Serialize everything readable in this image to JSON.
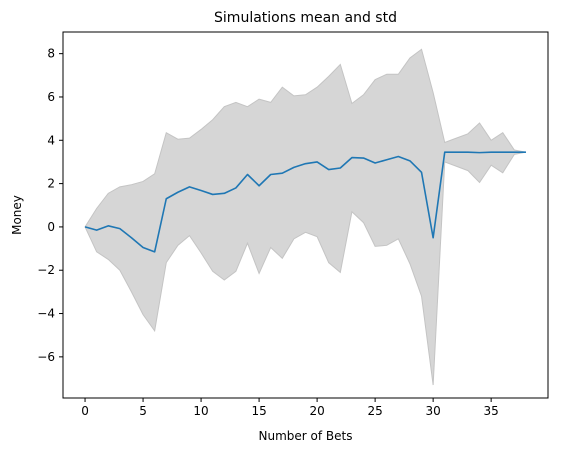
{
  "chart_data": {
    "type": "line",
    "title": "Simulations mean and std",
    "xlabel": "Number of Bets",
    "ylabel": "Money",
    "xlim": [
      -1.9,
      39.9
    ],
    "ylim": [
      -7.9,
      9.0
    ],
    "xticks": [
      0,
      5,
      10,
      15,
      20,
      25,
      30,
      35
    ],
    "yticks": [
      -6,
      -4,
      -2,
      0,
      2,
      4,
      6,
      8
    ],
    "grid": false,
    "x": [
      0,
      1,
      2,
      3,
      4,
      5,
      6,
      7,
      8,
      9,
      10,
      11,
      12,
      13,
      14,
      15,
      16,
      17,
      18,
      19,
      20,
      21,
      22,
      23,
      24,
      25,
      26,
      27,
      28,
      29,
      30,
      31,
      32,
      33,
      34,
      35,
      36,
      37,
      38
    ],
    "series": [
      {
        "name": "mean",
        "color": "#1f77b4",
        "values": [
          0.0,
          -0.15,
          0.05,
          -0.08,
          -0.5,
          -0.95,
          -1.15,
          1.3,
          1.6,
          1.85,
          1.68,
          1.5,
          1.55,
          1.8,
          2.42,
          1.9,
          2.42,
          2.48,
          2.75,
          2.92,
          3.0,
          2.65,
          2.72,
          3.2,
          3.18,
          2.95,
          3.1,
          3.25,
          3.05,
          2.52,
          -0.5,
          3.45,
          3.45,
          3.45,
          3.43,
          3.45,
          3.45,
          3.45,
          3.45
        ]
      },
      {
        "name": "std band",
        "color": "#d6d6d6",
        "upper": [
          0.0,
          0.85,
          1.55,
          1.85,
          1.95,
          2.1,
          2.45,
          4.35,
          4.05,
          4.1,
          4.5,
          4.95,
          5.55,
          5.75,
          5.55,
          5.9,
          5.75,
          6.45,
          6.05,
          6.1,
          6.45,
          6.95,
          7.5,
          5.7,
          6.1,
          6.8,
          7.05,
          7.05,
          7.8,
          8.2,
          6.2,
          3.9,
          4.1,
          4.3,
          4.8,
          4.0,
          4.35,
          3.55,
          3.45
        ],
        "lower": [
          0.0,
          -1.15,
          -1.5,
          -2.0,
          -3.0,
          -4.05,
          -4.8,
          -1.65,
          -0.85,
          -0.4,
          -1.2,
          -2.05,
          -2.45,
          -2.05,
          -0.75,
          -2.15,
          -0.95,
          -1.45,
          -0.55,
          -0.25,
          -0.45,
          -1.65,
          -2.1,
          0.7,
          0.2,
          -0.9,
          -0.85,
          -0.55,
          -1.7,
          -3.2,
          -7.3,
          3.0,
          2.8,
          2.6,
          2.05,
          2.85,
          2.5,
          3.35,
          3.45
        ]
      }
    ]
  }
}
